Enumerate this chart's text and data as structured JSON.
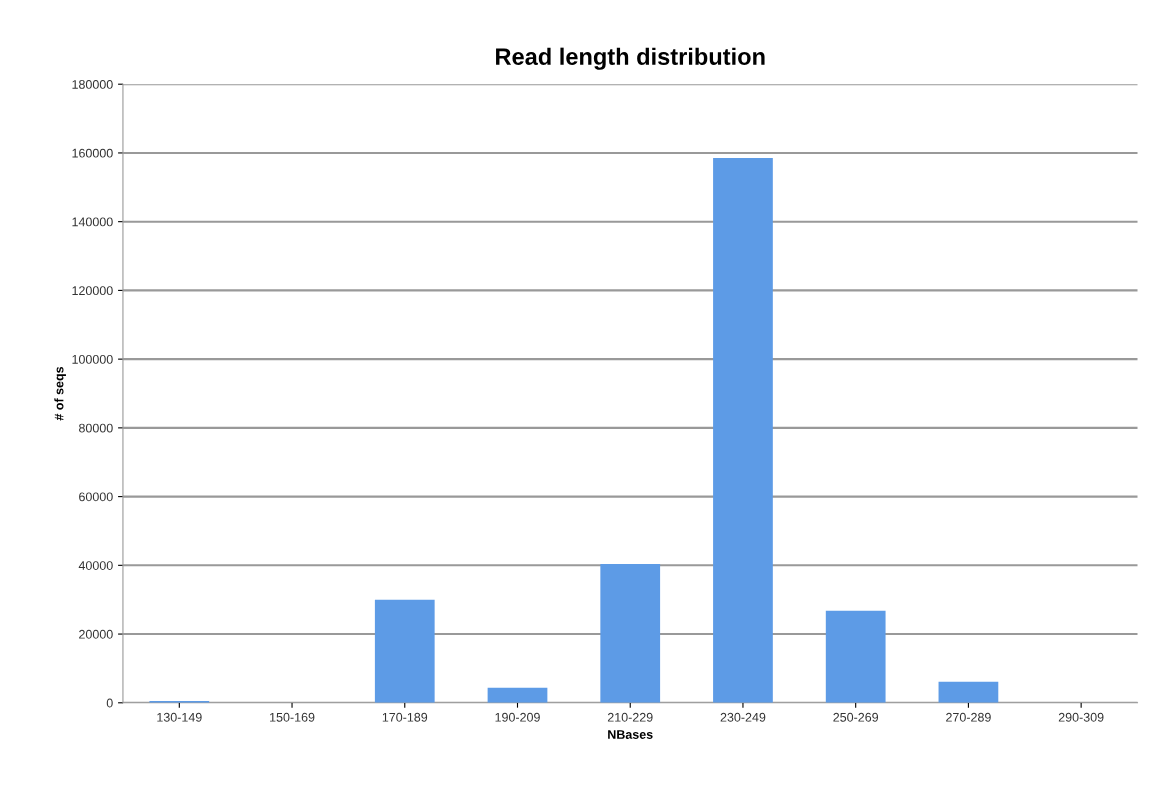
{
  "chart_data": {
    "type": "bar",
    "title": "Read length distribution",
    "xlabel": "NBases",
    "ylabel": "# of seqs",
    "categories": [
      "130-149",
      "150-169",
      "170-189",
      "190-209",
      "210-229",
      "230-249",
      "250-269",
      "270-289",
      "290-309"
    ],
    "values": [
      500,
      0,
      30000,
      4400,
      40400,
      158500,
      26800,
      6100,
      0
    ],
    "color": "#5d9be6",
    "ylim": [
      0,
      180000
    ],
    "yticks": [
      0,
      20000,
      40000,
      60000,
      80000,
      100000,
      120000,
      140000,
      160000,
      180000
    ],
    "grid": "y"
  }
}
